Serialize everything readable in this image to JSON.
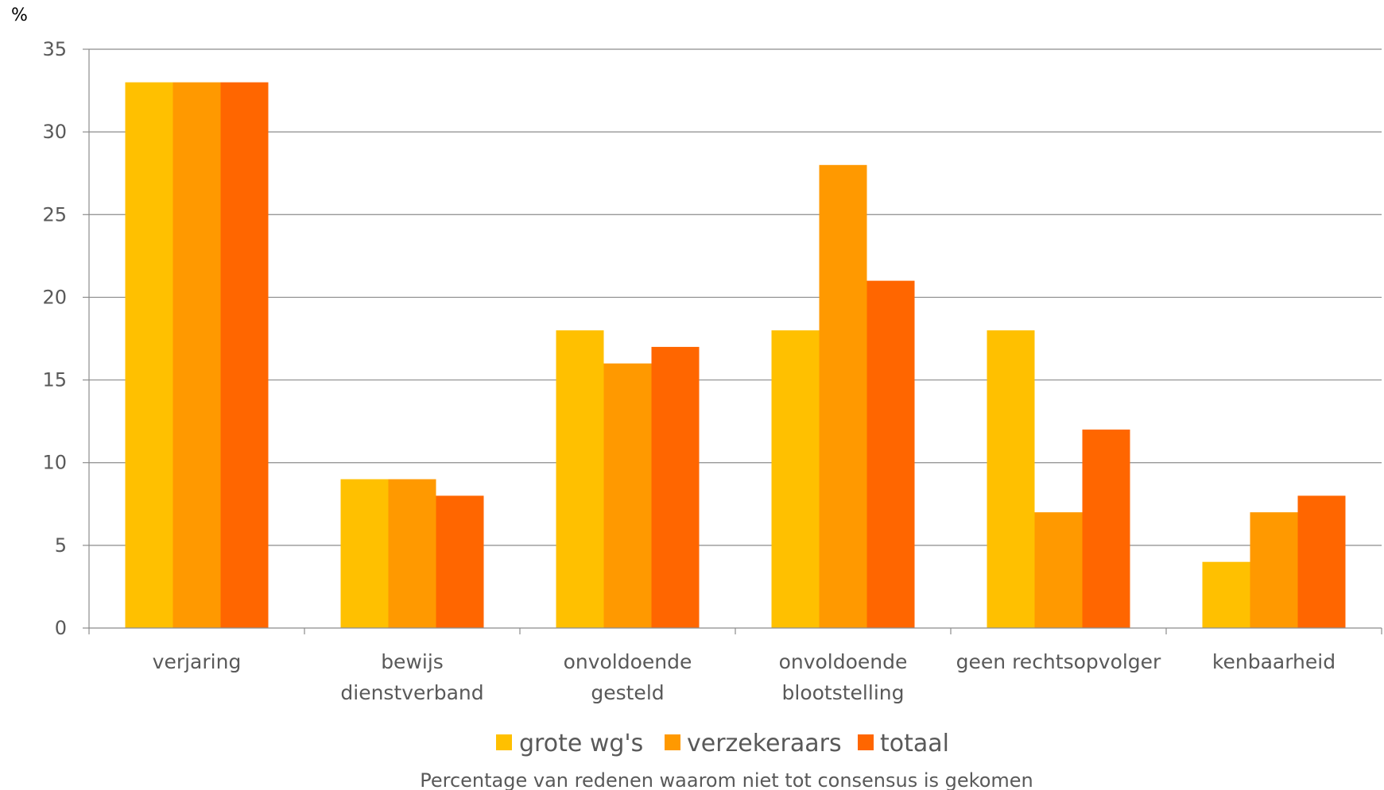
{
  "chart_data": {
    "type": "bar",
    "unit_label": "%",
    "caption": "Percentage van redenen waarom niet tot consensus is gekomen",
    "categories": [
      [
        "verjaring"
      ],
      [
        "bewijs",
        "dienstverband"
      ],
      [
        "onvoldoende",
        "gesteld"
      ],
      [
        "onvoldoende",
        "blootstelling"
      ],
      [
        "geen rechtsopvolger"
      ],
      [
        "kenbaarheid"
      ]
    ],
    "series": [
      {
        "name": "grote wg's",
        "color": "#FFC000",
        "values": [
          33,
          9,
          18,
          18,
          18,
          4
        ]
      },
      {
        "name": "verzekeraars",
        "color": "#FF9900",
        "values": [
          33,
          9,
          16,
          28,
          7,
          7
        ]
      },
      {
        "name": "totaal",
        "color": "#FF6600",
        "values": [
          33,
          8,
          17,
          21,
          12,
          8
        ]
      }
    ],
    "ylim": [
      0,
      35
    ],
    "yticks": [
      "0",
      "5",
      "10",
      "15",
      "20",
      "25",
      "30",
      "35"
    ],
    "grid": true,
    "legend_position": "bottom"
  }
}
